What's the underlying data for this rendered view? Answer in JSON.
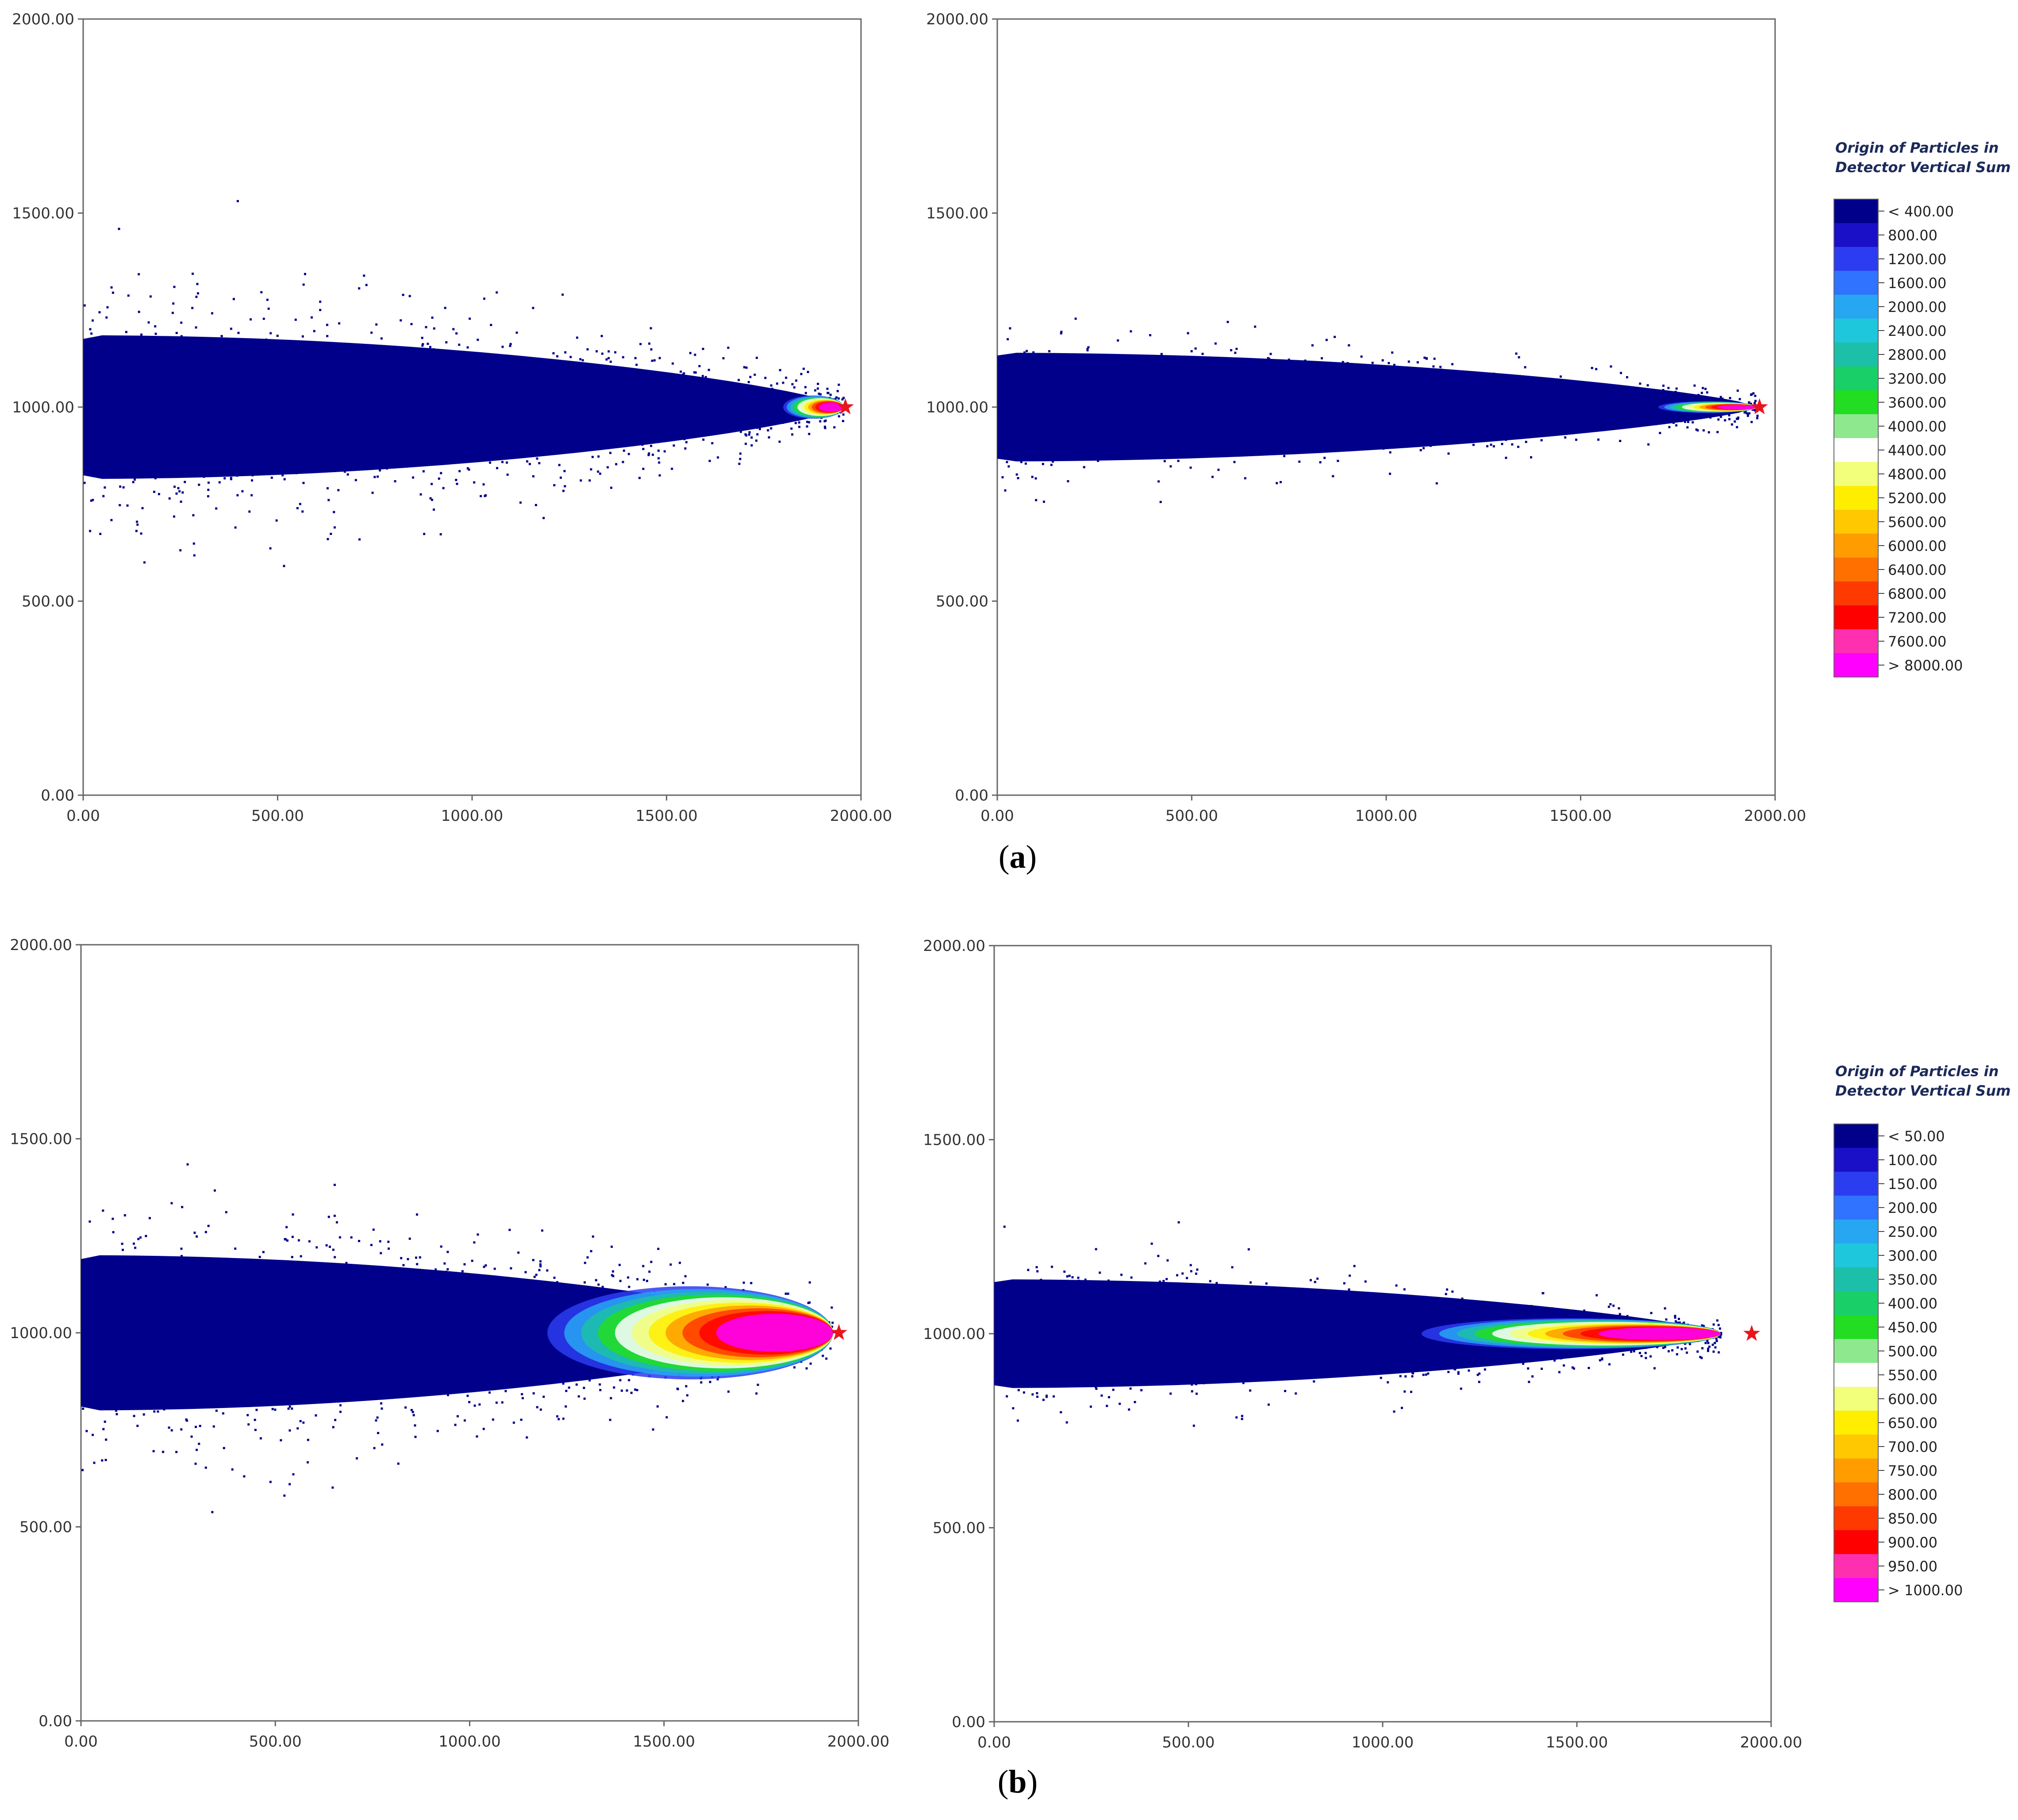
{
  "figure": {
    "panels": [
      {
        "label": "a"
      },
      {
        "label": "b"
      }
    ],
    "legends": [
      {
        "title_line1": "Origin of Particles in",
        "title_line2": "Detector Vertical Sum",
        "entries": [
          "< 400.00",
          "800.00",
          "1200.00",
          "1600.00",
          "2000.00",
          "2400.00",
          "2800.00",
          "3200.00",
          "3600.00",
          "4000.00",
          "4400.00",
          "4800.00",
          "5200.00",
          "5600.00",
          "6000.00",
          "6400.00",
          "6800.00",
          "7200.00",
          "7600.00",
          "> 8000.00"
        ]
      },
      {
        "title_line1": "Origin of Particles in",
        "title_line2": "Detector Vertical Sum",
        "entries": [
          "< 50.00",
          "100.00",
          "150.00",
          "200.00",
          "250.00",
          "300.00",
          "350.00",
          "400.00",
          "450.00",
          "500.00",
          "550.00",
          "600.00",
          "650.00",
          "700.00",
          "750.00",
          "800.00",
          "850.00",
          "900.00",
          "950.00",
          "> 1000.00"
        ]
      }
    ],
    "colormap": [
      "#00008b",
      "#1a10c8",
      "#2c3cf0",
      "#2f73ff",
      "#27a6f2",
      "#1ec7dc",
      "#1cc0a8",
      "#19cf68",
      "#22dd22",
      "#8ee88e",
      "#ffffff",
      "#f2ff7a",
      "#ffee00",
      "#ffc800",
      "#ff9d00",
      "#ff7000",
      "#ff3a00",
      "#ff0000",
      "#ff30b0",
      "#ff00ff"
    ],
    "source_marker_color": "#e8161c"
  },
  "chart_data": [
    {
      "type": "heatmap",
      "panel": "a",
      "position": "left",
      "title": "",
      "xlabel": "",
      "ylabel": "",
      "xlim": [
        0,
        2000
      ],
      "ylim": [
        0,
        2000
      ],
      "xticks": [
        "0.00",
        "500.00",
        "1000.00",
        "1500.00",
        "2000.00"
      ],
      "yticks": [
        "0.00",
        "500.00",
        "1000.00",
        "1500.00",
        "2000.00"
      ],
      "source": [
        1960,
        1000
      ],
      "plume": {
        "x_start": 0,
        "x_tip": 1955,
        "center_y": 1000,
        "half_width_core": 185,
        "half_width_sparse": 400,
        "hot_core_x_range": [
          1800,
          1955
        ],
        "hot_core_half_width": 30
      },
      "colorbar_range": [
        400,
        8000
      ]
    },
    {
      "type": "heatmap",
      "panel": "a",
      "position": "right",
      "title": "",
      "xlabel": "",
      "ylabel": "",
      "xlim": [
        0,
        2000
      ],
      "ylim": [
        0,
        2000
      ],
      "xticks": [
        "0.00",
        "500.00",
        "1000.00",
        "1500.00",
        "2000.00"
      ],
      "yticks": [
        "0.00",
        "500.00",
        "1000.00",
        "1500.00",
        "2000.00"
      ],
      "source": [
        1960,
        1000
      ],
      "plume": {
        "x_start": 0,
        "x_tip": 1955,
        "center_y": 1000,
        "half_width_core": 140,
        "half_width_sparse": 220,
        "hot_core_x_range": [
          1700,
          1955
        ],
        "hot_core_half_width": 15
      },
      "colorbar_range": [
        400,
        8000
      ]
    },
    {
      "type": "heatmap",
      "panel": "b",
      "position": "left",
      "title": "",
      "xlabel": "",
      "ylabel": "",
      "xlim": [
        0,
        2000
      ],
      "ylim": [
        0,
        2000
      ],
      "xticks": [
        "0.00",
        "500.00",
        "1000.00",
        "1500.00",
        "2000.00"
      ],
      "yticks": [
        "0.00",
        "500.00",
        "1000.00",
        "1500.00",
        "2000.00"
      ],
      "source": [
        1950,
        1000
      ],
      "plume": {
        "x_start": 0,
        "x_tip": 1935,
        "center_y": 1000,
        "half_width_core": 200,
        "half_width_sparse": 420,
        "hot_core_x_range": [
          1200,
          1935
        ],
        "hot_core_half_width": 120
      },
      "colorbar_range": [
        50,
        1000
      ]
    },
    {
      "type": "heatmap",
      "panel": "b",
      "position": "right",
      "title": "",
      "xlabel": "",
      "ylabel": "",
      "xlim": [
        0,
        2000
      ],
      "ylim": [
        0,
        2000
      ],
      "xticks": [
        "0.00",
        "500.00",
        "1000.00",
        "1500.00",
        "2000.00"
      ],
      "yticks": [
        "0.00",
        "500.00",
        "1000.00",
        "1500.00",
        "2000.00"
      ],
      "source": [
        1950,
        1000
      ],
      "plume": {
        "x_start": 0,
        "x_tip": 1870,
        "center_y": 1000,
        "half_width_core": 140,
        "half_width_sparse": 230,
        "hot_core_x_range": [
          1100,
          1870
        ],
        "hot_core_half_width": 40
      },
      "colorbar_range": [
        50,
        1000
      ]
    }
  ]
}
